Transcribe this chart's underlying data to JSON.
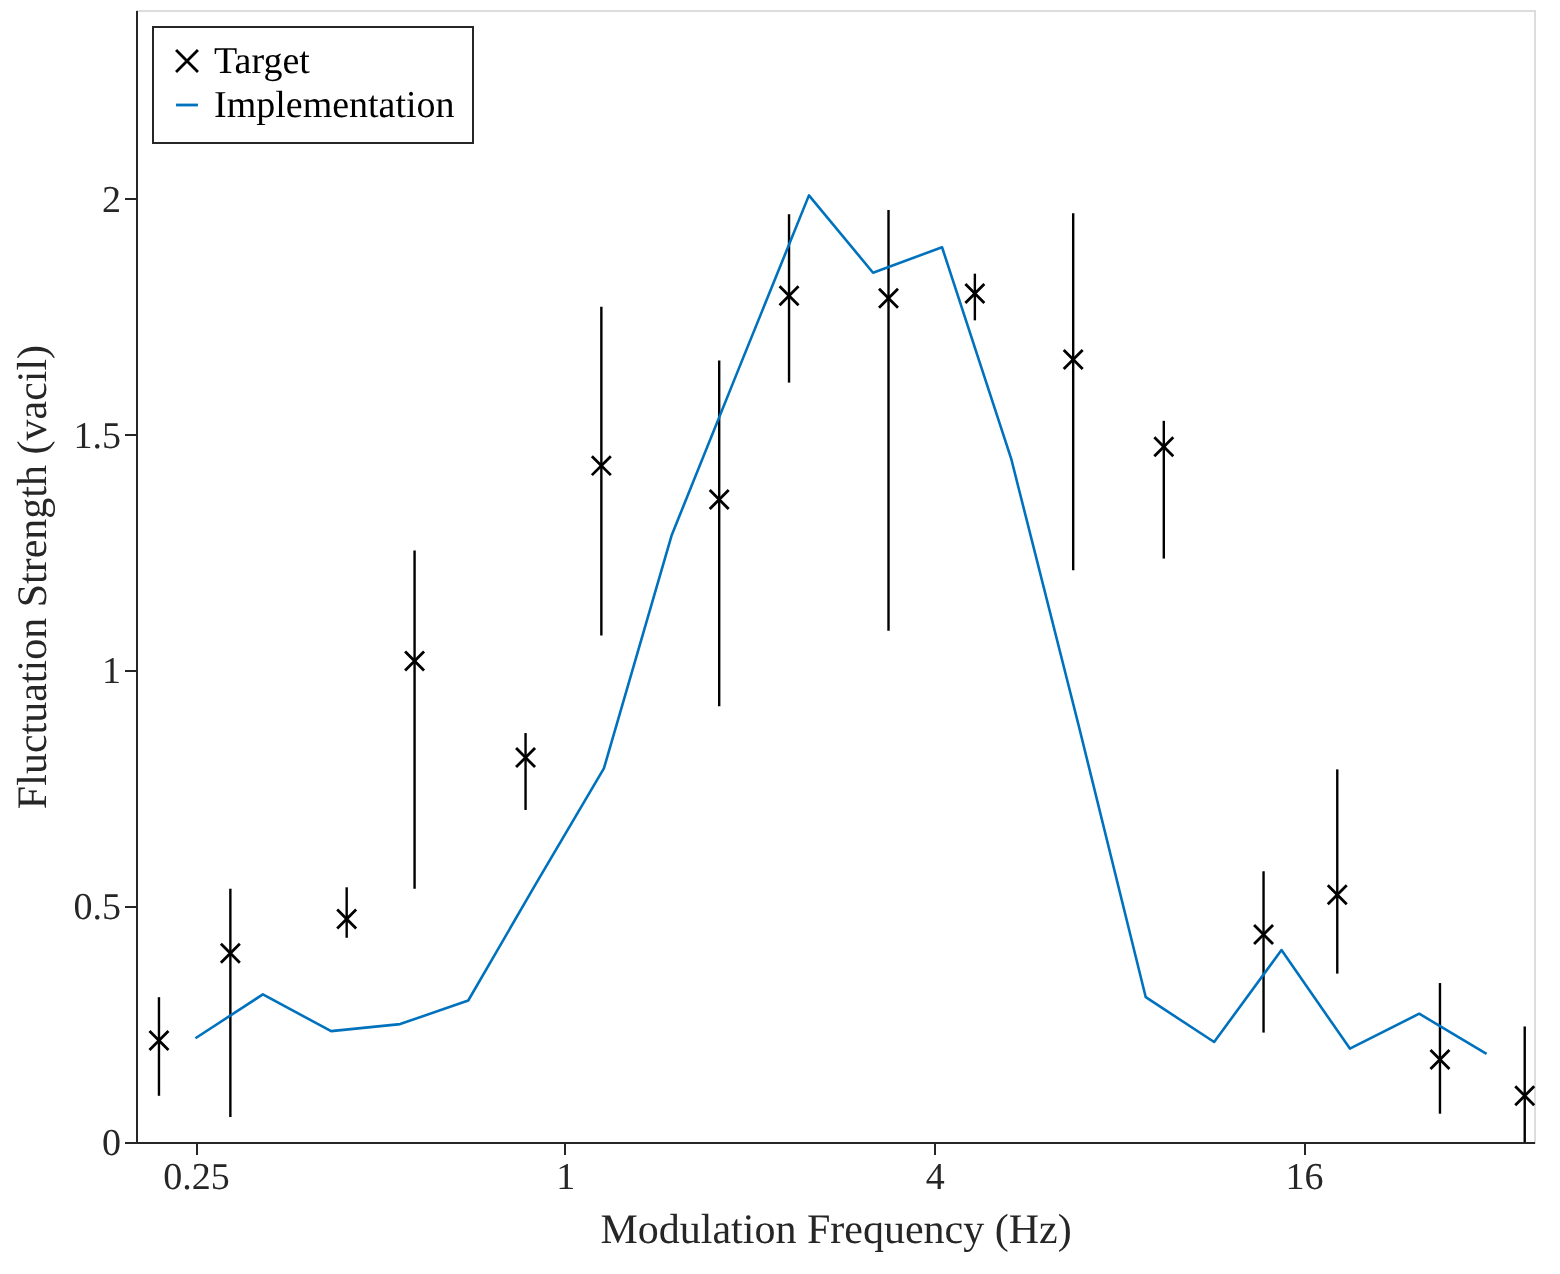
{
  "chart_data": {
    "type": "line",
    "xlabel": "Modulation Frequency (Hz)",
    "ylabel": "Fluctuation Strength (vacil)",
    "log": "x",
    "xlim": [
      0.2,
      38
    ],
    "xticks": [
      0.25,
      1,
      4,
      16
    ],
    "ylim": [
      0,
      2.4
    ],
    "yticks": [
      0,
      0.5,
      1,
      1.5,
      2
    ],
    "grid": false,
    "legend": "top left",
    "series": [
      {
        "name": "Target",
        "type": "scatter",
        "color": "#000000",
        "marker": "cross",
        "x": [
          0.218,
          0.285,
          0.441,
          0.569,
          0.863,
          1.147,
          1.785,
          2.32,
          3.37,
          4.66,
          6.74,
          9.47,
          13.77,
          18.16,
          26.7,
          36.7
        ],
        "values": [
          0.215,
          0.4,
          0.473,
          1.02,
          0.815,
          1.434,
          1.362,
          1.794,
          1.789,
          1.799,
          1.659,
          1.474,
          0.44,
          0.524,
          0.175,
          0.098
        ],
        "errors": [
          [
            0.098,
            0.307
          ],
          [
            0.053,
            0.537
          ],
          [
            0.433,
            0.54
          ],
          [
            0.537,
            1.254
          ],
          [
            0.704,
            0.867
          ],
          [
            1.074,
            1.771
          ],
          [
            0.924,
            1.657
          ],
          [
            1.61,
            1.967
          ],
          [
            1.084,
            1.976
          ],
          [
            1.742,
            1.841
          ],
          [
            1.212,
            1.969
          ],
          [
            1.237,
            1.529
          ],
          [
            0.232,
            0.574
          ],
          [
            0.357,
            0.79
          ],
          [
            0.06,
            0.337
          ],
          [
            0.0,
            0.245
          ]
        ]
      },
      {
        "name": "Implementation",
        "color": "#0072bd",
        "marker": "none",
        "line_style": "solid",
        "x": [
          0.25,
          0.322,
          0.416,
          0.539,
          0.696,
          0.895,
          1.158,
          1.494,
          1.93,
          2.5,
          3.18,
          4.12,
          5.34,
          6.88,
          8.85,
          11.44,
          14.73,
          19.04,
          24.7,
          31.8
        ],
        "values": [
          0.22,
          0.313,
          0.235,
          0.25,
          0.3,
          0.545,
          0.792,
          1.287,
          1.646,
          2.007,
          1.843,
          1.897,
          1.449,
          0.883,
          0.307,
          0.212,
          0.407,
          0.198,
          0.272,
          0.187
        ]
      }
    ]
  }
}
